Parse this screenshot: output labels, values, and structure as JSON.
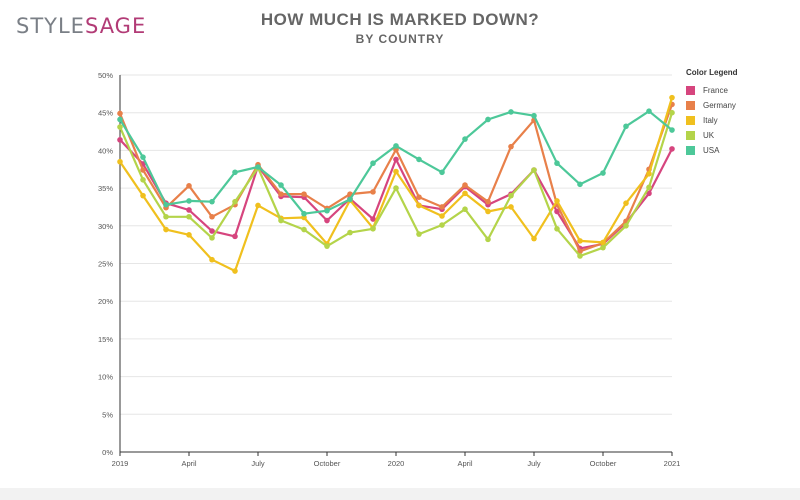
{
  "logo": {
    "part1": "STYLE",
    "part2": "SAGE"
  },
  "chart_data": {
    "type": "line",
    "title": "HOW MUCH IS MARKED DOWN?",
    "subtitle": "BY COUNTRY",
    "legend_title": "Color Legend",
    "legend_position": "right",
    "ylim": [
      0,
      50
    ],
    "y_ticks": [
      "0%",
      "5%",
      "10%",
      "15%",
      "20%",
      "25%",
      "30%",
      "35%",
      "40%",
      "45%",
      "50%"
    ],
    "x_ticks": [
      {
        "label": "2019",
        "index": 0
      },
      {
        "label": "April",
        "index": 3
      },
      {
        "label": "July",
        "index": 6
      },
      {
        "label": "October",
        "index": 9
      },
      {
        "label": "2020",
        "index": 12
      },
      {
        "label": "April",
        "index": 15
      },
      {
        "label": "July",
        "index": 18
      },
      {
        "label": "October",
        "index": 21
      },
      {
        "label": "2021",
        "index": 24
      }
    ],
    "n_points": 25,
    "series": [
      {
        "name": "France",
        "color": "#d6457e",
        "values": [
          41.4,
          38.2,
          33.0,
          32.1,
          29.3,
          28.6,
          37.9,
          33.9,
          33.8,
          30.7,
          33.6,
          30.9,
          38.8,
          32.7,
          32.2,
          35.2,
          32.8,
          34.2,
          37.4,
          31.9,
          27.0,
          27.6,
          30.4,
          34.3,
          40.2
        ]
      },
      {
        "name": "Germany",
        "color": "#e8804a",
        "values": [
          44.9,
          37.4,
          32.4,
          35.3,
          31.2,
          32.8,
          38.1,
          34.2,
          34.2,
          32.3,
          34.2,
          34.5,
          40.1,
          33.8,
          32.5,
          35.4,
          33.2,
          40.5,
          44.0,
          32.8,
          26.6,
          27.7,
          30.6,
          37.5,
          46.1
        ]
      },
      {
        "name": "Italy",
        "color": "#f0c01e",
        "values": [
          38.5,
          34.0,
          29.5,
          28.8,
          25.5,
          24.0,
          32.7,
          31.0,
          31.1,
          27.6,
          33.4,
          29.7,
          37.2,
          32.7,
          31.3,
          34.3,
          31.9,
          32.5,
          28.3,
          33.3,
          28.0,
          27.8,
          33.0,
          36.9,
          47.0
        ]
      },
      {
        "name": "UK",
        "color": "#b4d44a",
        "values": [
          43.1,
          36.1,
          31.2,
          31.2,
          28.4,
          33.2,
          37.7,
          30.7,
          29.5,
          27.3,
          29.1,
          29.6,
          35.0,
          28.9,
          30.1,
          32.2,
          28.2,
          34.0,
          37.4,
          29.6,
          26.0,
          27.1,
          30.0,
          35.1,
          45.0
        ]
      },
      {
        "name": "USA",
        "color": "#4dc899",
        "values": [
          44.1,
          39.1,
          32.8,
          33.3,
          33.2,
          37.1,
          37.8,
          35.4,
          31.6,
          32.0,
          33.5,
          38.3,
          40.6,
          38.8,
          37.1,
          41.5,
          44.1,
          45.1,
          44.6,
          38.3,
          35.5,
          37.0,
          43.2,
          45.2,
          42.7
        ]
      }
    ]
  }
}
